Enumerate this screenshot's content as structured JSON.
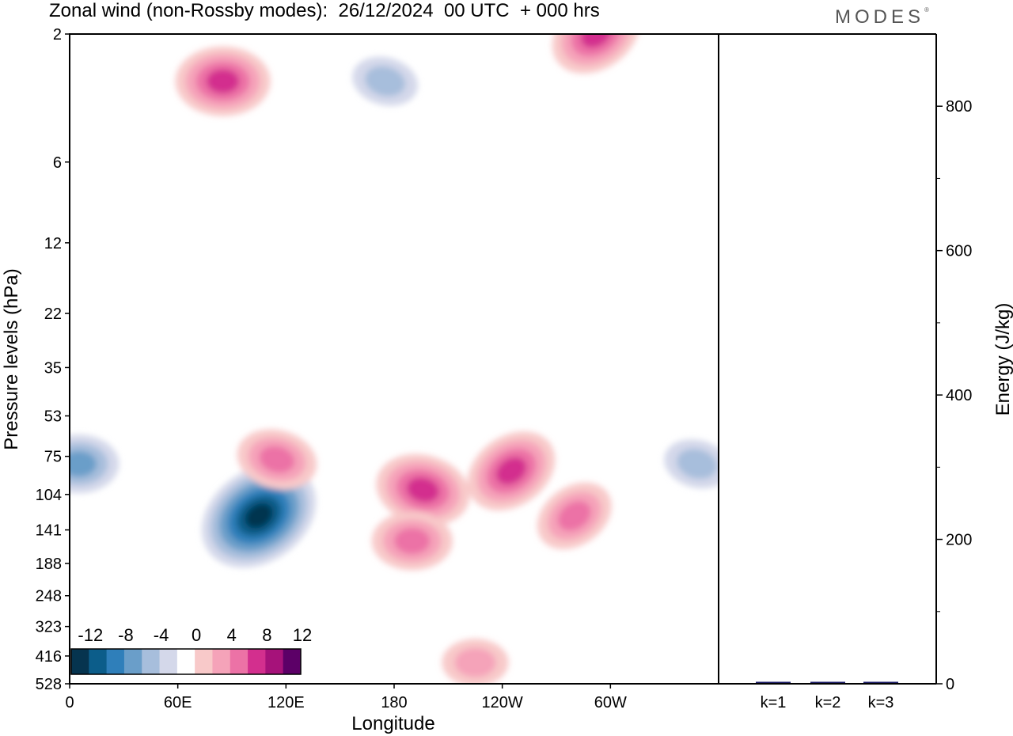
{
  "header": {
    "title": "Zonal wind (non-Rossby modes):  26/12/2024  00 UTC  + 000 hrs",
    "logo": "MODES",
    "logo_mark": "®"
  },
  "chart_data": [
    {
      "type": "heatmap",
      "title": "Zonal wind (non-Rossby modes):  26/12/2024  00 UTC  + 000 hrs",
      "xlabel": "Longitude",
      "ylabel": "Pressure levels (hPa)",
      "x_ticks": [
        "0",
        "60E",
        "120E",
        "180",
        "120W",
        "60W"
      ],
      "y_ticks": [
        "2",
        "6",
        "12",
        "22",
        "35",
        "53",
        "75",
        "104",
        "141",
        "188",
        "248",
        "323",
        "416",
        "528"
      ],
      "legend": {
        "placement": "bottom-left",
        "labels": [
          "-12",
          "-8",
          "-4",
          "0",
          "4",
          "8",
          "12"
        ],
        "colors": [
          "#06344f",
          "#0c5d8a",
          "#2f7fba",
          "#6a9ec9",
          "#a7bedc",
          "#d4d8ea",
          "#ffffff",
          "#f8c9c9",
          "#f5a3b9",
          "#ec72a6",
          "#d32f8e",
          "#a6127a",
          "#5c0067"
        ]
      },
      "features": [
        {
          "sign": "negative",
          "lon": 105,
          "level": 125,
          "peak": -14
        },
        {
          "sign": "negative",
          "lon": 5,
          "level": 80,
          "peak": -6
        },
        {
          "sign": "positive",
          "lon": 196,
          "level": 100,
          "peak": 10
        },
        {
          "sign": "positive",
          "lon": 245,
          "level": 85,
          "peak": 10
        },
        {
          "sign": "positive",
          "lon": 190,
          "level": 155,
          "peak": 7
        },
        {
          "sign": "positive",
          "lon": 115,
          "level": 77,
          "peak": 7
        },
        {
          "sign": "positive",
          "lon": 292,
          "level": 2,
          "peak": 10
        },
        {
          "sign": "positive",
          "lon": 85,
          "level": 3,
          "peak": 9
        },
        {
          "sign": "negative",
          "lon": 175,
          "level": 3,
          "peak": -5
        },
        {
          "sign": "positive",
          "lon": 280,
          "level": 125,
          "peak": 6
        },
        {
          "sign": "positive",
          "lon": 225,
          "level": 440,
          "peak": 4
        },
        {
          "sign": "negative",
          "lon": 348,
          "level": 80,
          "peak": -5
        }
      ]
    },
    {
      "type": "bar",
      "categories": [
        "k=1",
        "k=2",
        "k=3"
      ],
      "values": [
        1.5,
        1.2,
        1.0
      ],
      "ylabel": "Energy (J/kg)",
      "y_ticks": [
        "0",
        "200",
        "400",
        "600",
        "800"
      ],
      "ylim": [
        0,
        900
      ],
      "bar_color": "#1a1a66"
    }
  ]
}
